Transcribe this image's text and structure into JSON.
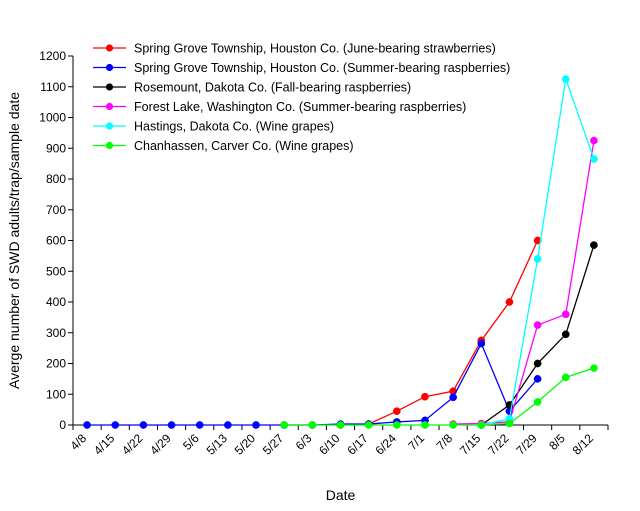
{
  "chart_data": {
    "type": "line",
    "title": "",
    "xlabel": "Date",
    "ylabel": "Averge number of SWD adults/trap/sample date",
    "ylim": [
      0,
      1200
    ],
    "yticks": [
      0,
      100,
      200,
      300,
      400,
      500,
      600,
      700,
      800,
      900,
      1000,
      1100,
      1200
    ],
    "categories": [
      "4/8",
      "4/15",
      "4/22",
      "4/29",
      "5/6",
      "5/13",
      "5/20",
      "5/27",
      "6/3",
      "6/10",
      "6/17",
      "6/24",
      "7/1",
      "7/8",
      "7/15",
      "7/22",
      "7/29",
      "8/5",
      "8/12"
    ],
    "grid": false,
    "legend_position": "top-left",
    "series": [
      {
        "name": "Spring Grove Township, Houston Co. (June-bearing strawberries)",
        "color": "#ff0000",
        "points": [
          [
            "6/10",
            0
          ],
          [
            "6/17",
            3
          ],
          [
            "6/24",
            45
          ],
          [
            "7/1",
            92
          ],
          [
            "7/8",
            110
          ],
          [
            "7/15",
            275
          ],
          [
            "7/22",
            400
          ],
          [
            "7/29",
            600
          ]
        ]
      },
      {
        "name": "Spring Grove Township, Houston Co. (Summer-bearing raspberries)",
        "color": "#0000ff",
        "points": [
          [
            "4/8",
            0
          ],
          [
            "4/15",
            0
          ],
          [
            "4/22",
            0
          ],
          [
            "4/29",
            0
          ],
          [
            "5/6",
            0
          ],
          [
            "5/13",
            0
          ],
          [
            "5/20",
            0
          ],
          [
            "5/27",
            0
          ],
          [
            "6/3",
            0
          ],
          [
            "6/10",
            3
          ],
          [
            "6/17",
            3
          ],
          [
            "6/24",
            10
          ],
          [
            "7/1",
            15
          ],
          [
            "7/8",
            90
          ],
          [
            "7/15",
            265
          ],
          [
            "7/22",
            45
          ],
          [
            "7/29",
            150
          ]
        ]
      },
      {
        "name": "Rosemount, Dakota Co. (Fall-bearing raspberries)",
        "color": "#000000",
        "points": [
          [
            "7/15",
            0
          ],
          [
            "7/22",
            65
          ],
          [
            "7/29",
            200
          ],
          [
            "8/5",
            295
          ],
          [
            "8/12",
            585
          ]
        ]
      },
      {
        "name": "Forest Lake, Washington Co. (Summer-bearing raspberries)",
        "color": "#ff00ff",
        "points": [
          [
            "7/8",
            3
          ],
          [
            "7/15",
            5
          ],
          [
            "7/22",
            10
          ],
          [
            "7/29",
            325
          ],
          [
            "8/5",
            360
          ],
          [
            "8/12",
            925
          ]
        ]
      },
      {
        "name": "Hastings, Dakota Co. (Wine grapes)",
        "color": "#00ffff",
        "points": [
          [
            "7/15",
            0
          ],
          [
            "7/22",
            20
          ],
          [
            "7/29",
            540
          ],
          [
            "8/5",
            1125
          ],
          [
            "8/12",
            865
          ]
        ]
      },
      {
        "name": "Chanhassen, Carver Co. (Wine grapes)",
        "color": "#00ff00",
        "points": [
          [
            "5/27",
            0
          ],
          [
            "6/3",
            0
          ],
          [
            "6/10",
            0
          ],
          [
            "6/17",
            0
          ],
          [
            "6/24",
            0
          ],
          [
            "7/1",
            0
          ],
          [
            "7/8",
            0
          ],
          [
            "7/15",
            0
          ],
          [
            "7/22",
            5
          ],
          [
            "7/29",
            75
          ],
          [
            "8/5",
            155
          ],
          [
            "8/12",
            185
          ]
        ]
      }
    ]
  }
}
